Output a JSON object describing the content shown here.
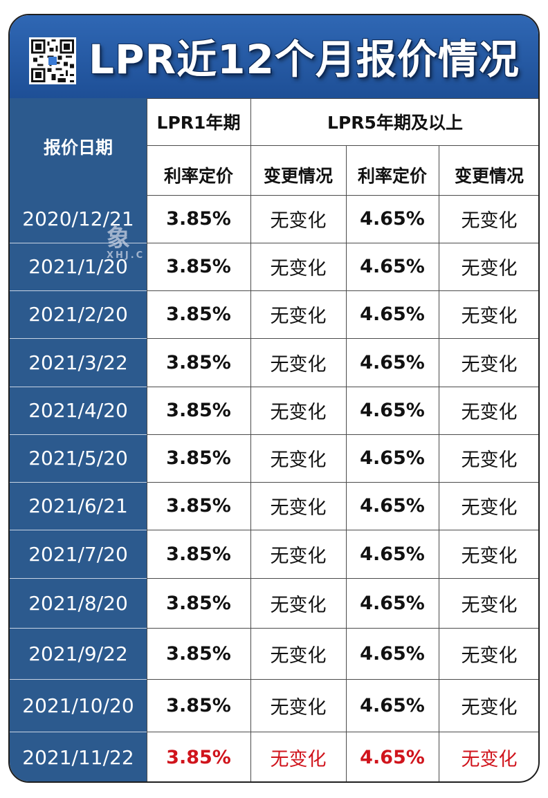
{
  "title": "LPR近12个月报价情况",
  "watermark": {
    "main": "象",
    "sub": "XHJ.C"
  },
  "headers": {
    "date": "报价日期",
    "lpr1": "LPR1年期",
    "lpr5": "LPR5年期及以上",
    "rate1": "利率定价",
    "change1": "变更情况",
    "rate5": "利率定价",
    "change5": "变更情况"
  },
  "rows": [
    {
      "date": "2020/12/21",
      "lpr1": "3.85%",
      "change1": "无变化",
      "lpr5": "4.65%",
      "change5": "无变化"
    },
    {
      "date": "2021/1/20",
      "lpr1": "3.85%",
      "change1": "无变化",
      "lpr5": "4.65%",
      "change5": "无变化"
    },
    {
      "date": "2021/2/20",
      "lpr1": "3.85%",
      "change1": "无变化",
      "lpr5": "4.65%",
      "change5": "无变化"
    },
    {
      "date": "2021/3/22",
      "lpr1": "3.85%",
      "change1": "无变化",
      "lpr5": "4.65%",
      "change5": "无变化"
    },
    {
      "date": "2021/4/20",
      "lpr1": "3.85%",
      "change1": "无变化",
      "lpr5": "4.65%",
      "change5": "无变化"
    },
    {
      "date": "2021/5/20",
      "lpr1": "3.85%",
      "change1": "无变化",
      "lpr5": "4.65%",
      "change5": "无变化"
    },
    {
      "date": "2021/6/21",
      "lpr1": "3.85%",
      "change1": "无变化",
      "lpr5": "4.65%",
      "change5": "无变化"
    },
    {
      "date": "2021/7/20",
      "lpr1": "3.85%",
      "change1": "无变化",
      "lpr5": "4.65%",
      "change5": "无变化"
    },
    {
      "date": "2021/8/20",
      "lpr1": "3.85%",
      "change1": "无变化",
      "lpr5": "4.65%",
      "change5": "无变化"
    },
    {
      "date": "2021/9/22",
      "lpr1": "3.85%",
      "change1": "无变化",
      "lpr5": "4.65%",
      "change5": "无变化"
    },
    {
      "date": "2021/10/20",
      "lpr1": "3.85%",
      "change1": "无变化",
      "lpr5": "4.65%",
      "change5": "无变化"
    },
    {
      "date": "2021/11/22",
      "lpr1": "3.85%",
      "change1": "无变化",
      "lpr5": "4.65%",
      "change5": "无变化"
    }
  ],
  "colors": {
    "header_blue": "#2f67b4",
    "date_column": "#2c5a8e",
    "highlight_red": "#d0141c"
  },
  "icons": {
    "qr": "qr-code-icon"
  }
}
